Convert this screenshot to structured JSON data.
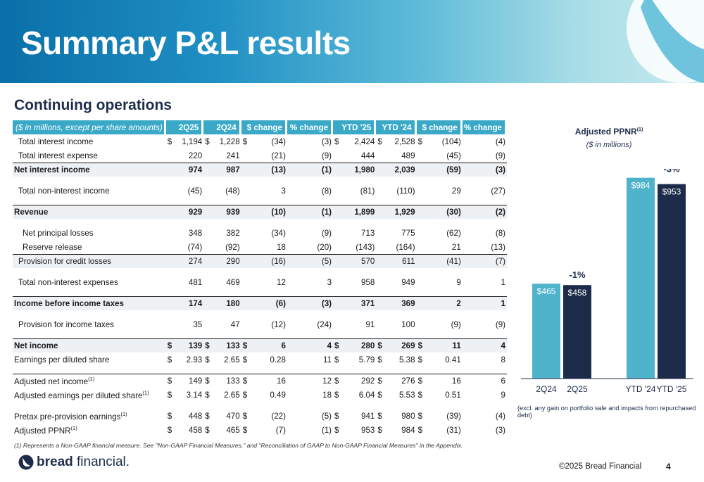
{
  "title": "Summary P&L results",
  "section": "Continuing operations",
  "table": {
    "header": {
      "label": "($ in millions, except per share amounts)",
      "cols": [
        "2Q25",
        "2Q24",
        "$ change",
        "% change",
        "YTD '25",
        "YTD '24",
        "$ change",
        "% change"
      ]
    },
    "rows": [
      {
        "label": "Total interest income",
        "sup": "",
        "indent": 1,
        "bold": false,
        "shade": false,
        "top": false,
        "spacer_before": false,
        "d": [
          "$",
          "$",
          "$",
          "",
          "$",
          "$",
          "$",
          ""
        ],
        "v": [
          "1,194",
          "1,228",
          "(34)",
          "(3)",
          "2,424",
          "2,528",
          "(104)",
          "(4)"
        ]
      },
      {
        "label": "Total interest expense",
        "sup": "",
        "indent": 1,
        "bold": false,
        "shade": false,
        "top": false,
        "spacer_before": false,
        "d": [
          "",
          "",
          "",
          "",
          "",
          "",
          "",
          ""
        ],
        "v": [
          "220",
          "241",
          "(21)",
          "(9)",
          "444",
          "489",
          "(45)",
          "(9)"
        ]
      },
      {
        "label": "Net interest income",
        "sup": "",
        "indent": 0,
        "bold": true,
        "shade": true,
        "top": true,
        "spacer_before": false,
        "d": [
          "",
          "",
          "",
          "",
          "",
          "",
          "",
          ""
        ],
        "v": [
          "974",
          "987",
          "(13)",
          "(1)",
          "1,980",
          "2,039",
          "(59)",
          "(3)"
        ]
      },
      {
        "label": "Total non-interest income",
        "sup": "",
        "indent": 1,
        "bold": false,
        "shade": false,
        "top": false,
        "spacer_before": true,
        "d": [
          "",
          "",
          "",
          "",
          "",
          "",
          "",
          ""
        ],
        "v": [
          "(45)",
          "(48)",
          "3",
          "(8)",
          "(81)",
          "(110)",
          "29",
          "(27)"
        ]
      },
      {
        "label": "Revenue",
        "sup": "",
        "indent": 0,
        "bold": true,
        "shade": true,
        "top": true,
        "spacer_before": true,
        "d": [
          "",
          "",
          "",
          "",
          "",
          "",
          "",
          ""
        ],
        "v": [
          "929",
          "939",
          "(10)",
          "(1)",
          "1,899",
          "1,929",
          "(30)",
          "(2)"
        ]
      },
      {
        "label": "Net principal losses",
        "sup": "",
        "indent": 2,
        "bold": false,
        "shade": false,
        "top": false,
        "spacer_before": true,
        "d": [
          "",
          "",
          "",
          "",
          "",
          "",
          "",
          ""
        ],
        "v": [
          "348",
          "382",
          "(34)",
          "(9)",
          "713",
          "775",
          "(62)",
          "(8)"
        ]
      },
      {
        "label": "Reserve release",
        "sup": "",
        "indent": 2,
        "bold": false,
        "shade": false,
        "top": false,
        "spacer_before": false,
        "d": [
          "",
          "",
          "",
          "",
          "",
          "",
          "",
          ""
        ],
        "v": [
          "(74)",
          "(92)",
          "18",
          "(20)",
          "(143)",
          "(164)",
          "21",
          "(13)"
        ]
      },
      {
        "label": "Provision for credit losses",
        "sup": "",
        "indent": 1,
        "bold": false,
        "shade": true,
        "top": true,
        "spacer_before": false,
        "d": [
          "",
          "",
          "",
          "",
          "",
          "",
          "",
          ""
        ],
        "v": [
          "274",
          "290",
          "(16)",
          "(5)",
          "570",
          "611",
          "(41)",
          "(7)"
        ]
      },
      {
        "label": "Total non-interest expenses",
        "sup": "",
        "indent": 1,
        "bold": false,
        "shade": false,
        "top": false,
        "spacer_before": true,
        "d": [
          "",
          "",
          "",
          "",
          "",
          "",
          "",
          ""
        ],
        "v": [
          "481",
          "469",
          "12",
          "3",
          "958",
          "949",
          "9",
          "1"
        ]
      },
      {
        "label": "Income before income taxes",
        "sup": "",
        "indent": 0,
        "bold": true,
        "shade": true,
        "top": true,
        "spacer_before": true,
        "d": [
          "",
          "",
          "",
          "",
          "",
          "",
          "",
          ""
        ],
        "v": [
          "174",
          "180",
          "(6)",
          "(3)",
          "371",
          "369",
          "2",
          "1"
        ]
      },
      {
        "label": "Provision for income taxes",
        "sup": "",
        "indent": 1,
        "bold": false,
        "shade": false,
        "top": false,
        "spacer_before": true,
        "d": [
          "",
          "",
          "",
          "",
          "",
          "",
          "",
          ""
        ],
        "v": [
          "35",
          "47",
          "(12)",
          "(24)",
          "91",
          "100",
          "(9)",
          "(9)"
        ]
      },
      {
        "label": "Net income",
        "sup": "",
        "indent": 0,
        "bold": true,
        "shade": true,
        "top": true,
        "spacer_before": true,
        "d": [
          "$",
          "$",
          "$",
          "",
          "$",
          "$",
          "$",
          ""
        ],
        "v": [
          "139",
          "133",
          "6",
          "4",
          "280",
          "269",
          "11",
          "4"
        ]
      },
      {
        "label": "Earnings per diluted share",
        "sup": "",
        "indent": 0,
        "bold": false,
        "shade": false,
        "top": false,
        "spacer_before": false,
        "d": [
          "$",
          "$",
          "$",
          "",
          "$",
          "$",
          "$",
          ""
        ],
        "v": [
          "2.93",
          "2.65",
          "0.28",
          "11",
          "5.79",
          "5.38",
          "0.41",
          "8"
        ]
      },
      {
        "label": "Adjusted net income",
        "sup": "(1)",
        "indent": 0,
        "bold": false,
        "shade": false,
        "top": true,
        "spacer_before": true,
        "d": [
          "$",
          "$",
          "$",
          "",
          "$",
          "$",
          "$",
          ""
        ],
        "v": [
          "149",
          "133",
          "16",
          "12",
          "292",
          "276",
          "16",
          "6"
        ]
      },
      {
        "label": "Adjusted earnings per diluted share",
        "sup": "(1)",
        "indent": 0,
        "bold": false,
        "shade": false,
        "top": false,
        "spacer_before": false,
        "d": [
          "$",
          "$",
          "$",
          "",
          "$",
          "$",
          "$",
          ""
        ],
        "v": [
          "3.14",
          "2.65",
          "0.49",
          "18",
          "6.04",
          "5.53",
          "0.51",
          "9"
        ]
      },
      {
        "label": "Pretax pre-provision earnings",
        "sup": "(1)",
        "indent": 0,
        "bold": false,
        "shade": false,
        "top": false,
        "spacer_before": true,
        "d": [
          "$",
          "$",
          "$",
          "",
          "$",
          "$",
          "$",
          ""
        ],
        "v": [
          "448",
          "470",
          "(22)",
          "(5)",
          "941",
          "980",
          "(39)",
          "(4)"
        ]
      },
      {
        "label": "Adjusted PPNR",
        "sup": "(1)",
        "indent": 0,
        "bold": false,
        "shade": false,
        "top": false,
        "spacer_before": false,
        "d": [
          "$",
          "$",
          "$",
          "",
          "$",
          "$",
          "$",
          ""
        ],
        "v": [
          "458",
          "465",
          "(7)",
          "(1)",
          "953",
          "984",
          "(31)",
          "(3)"
        ]
      }
    ]
  },
  "chart": {
    "title": "Adjusted PPNR",
    "title_sup": "(1)",
    "subtitle": "($ in millions)",
    "note": "(excl. any gain on portfolio sale and impacts from repurchased debt)"
  },
  "chart_data": {
    "type": "bar",
    "title": "Adjusted PPNR",
    "categories": [
      "2Q24",
      "2Q25",
      "YTD '24",
      "YTD '25"
    ],
    "values": [
      465,
      458,
      984,
      953
    ],
    "value_labels": [
      "$465",
      "$458",
      "$984",
      "$953"
    ],
    "colors": [
      "#4fb3cc",
      "#1c2b4a",
      "#4fb3cc",
      "#1c2b4a"
    ],
    "annotations": [
      {
        "text": "-1%",
        "group": 0
      },
      {
        "text": "-3%",
        "group": 1
      }
    ],
    "ylim": [
      0,
      1000
    ],
    "grid": false,
    "xlabel": "",
    "ylabel": ""
  },
  "footer": {
    "footnote": "(1)  Represents a Non-GAAP financial measure.  See \"Non-GAAP Financial Measures,\" and \"Reconciliation of GAAP to Non-GAAP Financial Measures\" in the Appendix.",
    "brand_bold": "bread",
    "brand_rest": " financial.",
    "copyright": "©2025 Bread Financial",
    "page": "4"
  },
  "colors": {
    "accent": "#3aa9c7",
    "navy": "#1c2b4a",
    "teal_bar": "#4fb3cc"
  }
}
